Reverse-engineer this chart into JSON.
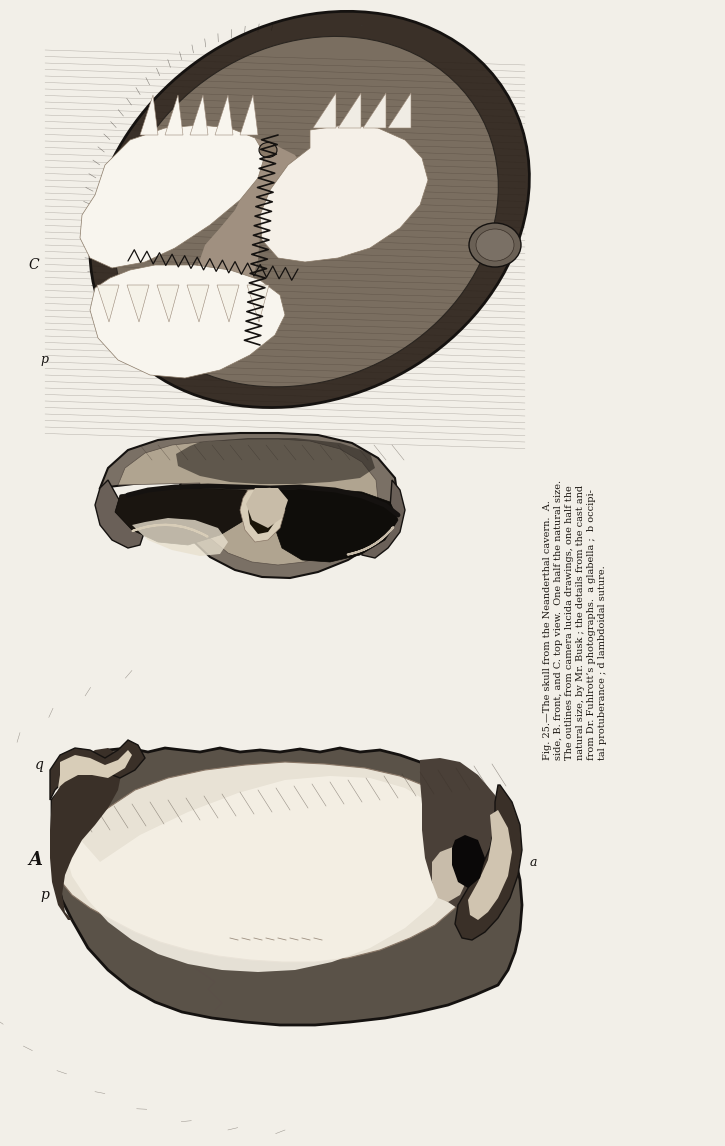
{
  "bg_color": "#f2efe8",
  "fig_width": 7.25,
  "fig_height": 11.46,
  "dpi": 100,
  "caption": [
    "Fig. 25.—The skull from the Neanderthal cavern.  A.",
    "side, B. front, and C. top view.  One half the natural size.",
    "The outlines from camera lucida drawings, one half the",
    "natural size, by Mr. Busk ; the details from the cast and",
    "from Dr. Fuhlrott’s photographs.  a glabella ;  b occipi-",
    "tal protuberance ; d lambdoidal suture."
  ],
  "dark_gray": "#2a2520",
  "mid_gray": "#6a6058",
  "light_bone": "#d8cdb8",
  "white_area": "#f0ece0",
  "very_dark": "#151210",
  "skull_dark": "#3a3028"
}
